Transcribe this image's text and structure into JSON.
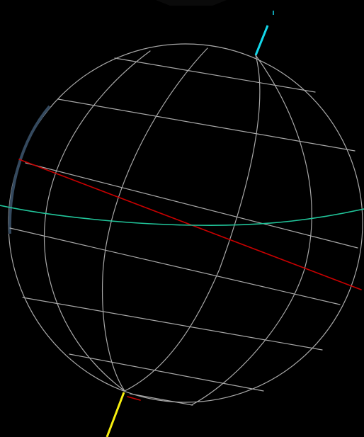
{
  "scene": {
    "background_color": "#000000",
    "object": "wireframe-sphere",
    "colors": {
      "grid": "#a8a8a8",
      "outline_shade": "#34495e",
      "equator": "#21c59a",
      "red_great_circle": "#c80000",
      "axis_north": "#14d7ea",
      "axis_south": "#f7ef0f"
    }
  }
}
